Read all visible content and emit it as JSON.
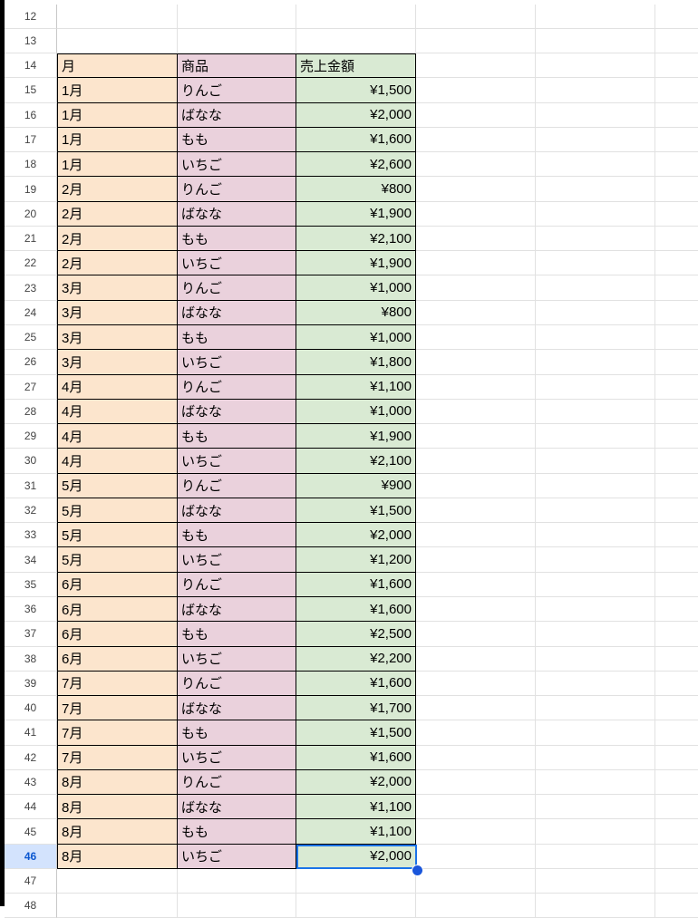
{
  "empty_rows_before": [
    12,
    13
  ],
  "table": {
    "header_row": 14,
    "headers": [
      "月",
      "商品",
      "売上金額"
    ],
    "rows": [
      [
        "1月",
        "りんご",
        "¥1,500"
      ],
      [
        "1月",
        "ばなな",
        "¥2,000"
      ],
      [
        "1月",
        "もも",
        "¥1,600"
      ],
      [
        "1月",
        "いちご",
        "¥2,600"
      ],
      [
        "2月",
        "りんご",
        "¥800"
      ],
      [
        "2月",
        "ばなな",
        "¥1,900"
      ],
      [
        "2月",
        "もも",
        "¥2,100"
      ],
      [
        "2月",
        "いちご",
        "¥1,900"
      ],
      [
        "3月",
        "りんご",
        "¥1,000"
      ],
      [
        "3月",
        "ばなな",
        "¥800"
      ],
      [
        "3月",
        "もも",
        "¥1,000"
      ],
      [
        "3月",
        "いちご",
        "¥1,800"
      ],
      [
        "4月",
        "りんご",
        "¥1,100"
      ],
      [
        "4月",
        "ばなな",
        "¥1,000"
      ],
      [
        "4月",
        "もも",
        "¥1,900"
      ],
      [
        "4月",
        "いちご",
        "¥2,100"
      ],
      [
        "5月",
        "りんご",
        "¥900"
      ],
      [
        "5月",
        "ばなな",
        "¥1,500"
      ],
      [
        "5月",
        "もも",
        "¥2,000"
      ],
      [
        "5月",
        "いちご",
        "¥1,200"
      ],
      [
        "6月",
        "りんご",
        "¥1,600"
      ],
      [
        "6月",
        "ばなな",
        "¥1,600"
      ],
      [
        "6月",
        "もも",
        "¥2,500"
      ],
      [
        "6月",
        "いちご",
        "¥2,200"
      ],
      [
        "7月",
        "りんご",
        "¥1,600"
      ],
      [
        "7月",
        "ばなな",
        "¥1,700"
      ],
      [
        "7月",
        "もも",
        "¥1,500"
      ],
      [
        "7月",
        "いちご",
        "¥1,600"
      ],
      [
        "8月",
        "りんご",
        "¥2,000"
      ],
      [
        "8月",
        "ばなな",
        "¥1,100"
      ],
      [
        "8月",
        "もも",
        "¥1,100"
      ],
      [
        "8月",
        "いちご",
        "¥2,000"
      ]
    ]
  },
  "empty_rows_after": [
    47,
    48
  ],
  "selected_row": 46,
  "colors": {
    "month_fill": "#fce5cd",
    "product_fill": "#ead1dc",
    "sales_fill": "#d9ead3",
    "selection": "#1a73e8"
  }
}
